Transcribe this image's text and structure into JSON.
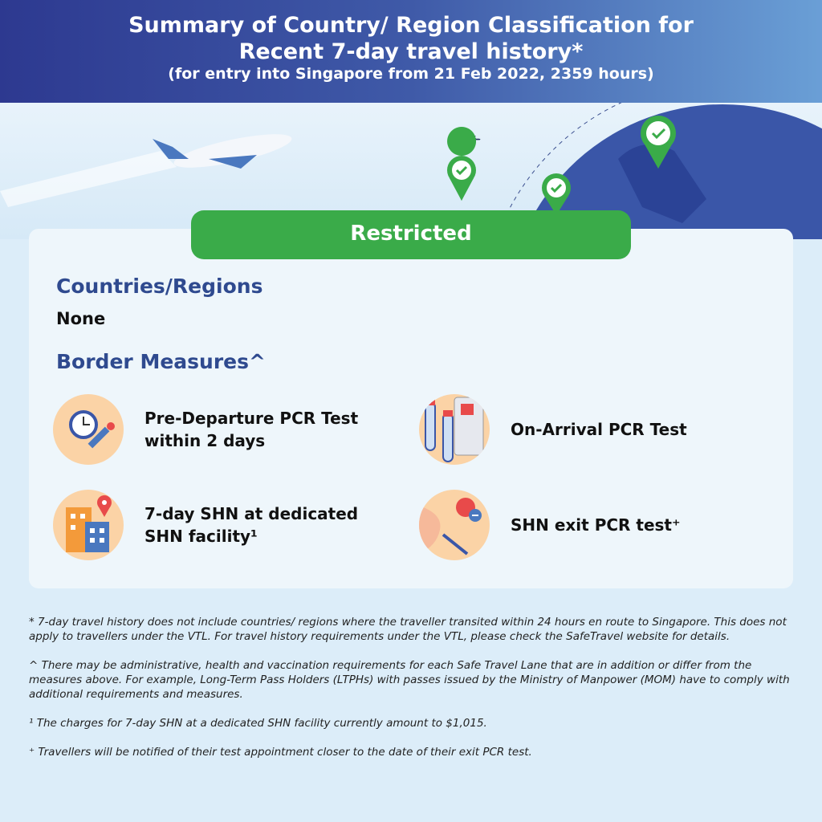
{
  "header": {
    "title_line1": "Summary of Country/ Region Classification for",
    "title_line2": "Recent 7-day travel history*",
    "subtitle": "(for entry into Singapore from 21 Feb 2022, 2359 hours)"
  },
  "classification": {
    "label": "Restricted",
    "color": "#3aab49"
  },
  "countries": {
    "heading": "Countries/Regions",
    "value": "None"
  },
  "measures": {
    "heading": "Border Measures^",
    "items": [
      {
        "label": "Pre-Departure PCR Test within 2 days",
        "icon": "clock-test-swab-icon"
      },
      {
        "label": "On-Arrival PCR Test",
        "icon": "test-tubes-icon"
      },
      {
        "label": "7-day SHN at dedicated SHN facility¹",
        "icon": "hotel-location-icon"
      },
      {
        "label": "SHN exit PCR test⁺",
        "icon": "nasal-swab-icon"
      }
    ]
  },
  "footnotes": [
    "* 7-day travel history does not include countries/ regions where the traveller transited within 24 hours en route to Singapore. This does not apply to travellers under the VTL. For travel history requirements under the VTL, please check the SafeTravel website for details.",
    "^ There may be administrative, health and vaccination requirements for each Safe Travel Lane that are in addition or differ from the measures above. For example, Long-Term Pass Holders (LTPHs) with passes issued by the Ministry of Manpower (MOM) have to comply with additional requirements and measures.",
    "¹ The charges for 7-day SHN at a dedicated SHN facility currently amount to $1,015.",
    "⁺ Travellers will be notified of their test appointment closer to the date of their exit PCR test."
  ]
}
